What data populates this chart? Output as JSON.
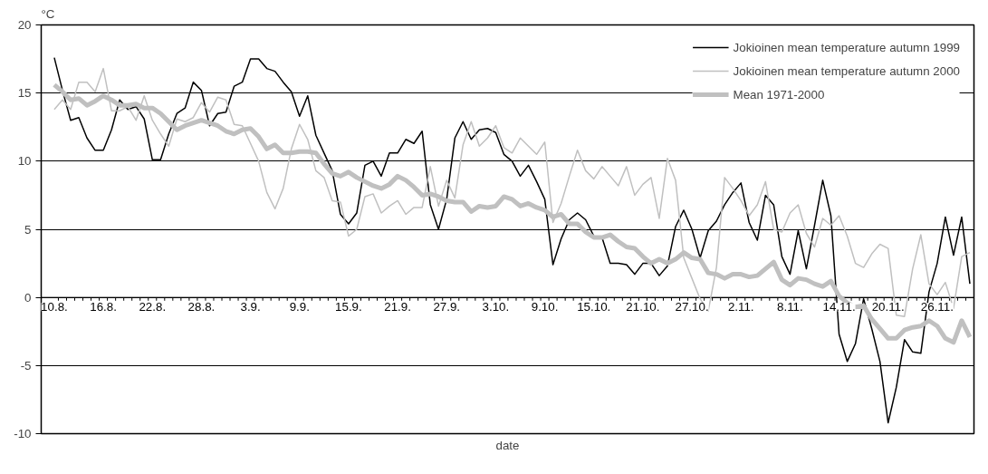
{
  "chart_data": {
    "type": "line",
    "xlabel": "date",
    "ylabel": "°C",
    "categories": [
      "10.8.",
      null,
      null,
      null,
      null,
      null,
      "16.8.",
      null,
      null,
      null,
      null,
      null,
      "22.8.",
      null,
      null,
      null,
      null,
      null,
      "28.8.",
      null,
      null,
      null,
      null,
      null,
      "3.9.",
      null,
      null,
      null,
      null,
      null,
      "9.9.",
      null,
      null,
      null,
      null,
      null,
      "15.9.",
      null,
      null,
      null,
      null,
      null,
      "21.9.",
      null,
      null,
      null,
      null,
      null,
      "27.9.",
      null,
      null,
      null,
      null,
      null,
      "3.10.",
      null,
      null,
      null,
      null,
      null,
      "9.10.",
      null,
      null,
      null,
      null,
      null,
      "15.10.",
      null,
      null,
      null,
      null,
      null,
      "21.10.",
      null,
      null,
      null,
      null,
      null,
      "27.10.",
      null,
      null,
      null,
      null,
      null,
      "2.11.",
      null,
      null,
      null,
      null,
      null,
      "8.11.",
      null,
      null,
      null,
      null,
      null,
      "14.11.",
      null,
      null,
      null,
      null,
      null,
      "20.11.",
      null,
      null,
      null,
      null,
      null,
      "26.11.",
      null,
      null,
      null,
      null
    ],
    "series": [
      {
        "name": "Jokioinen mean temperature autumn 1999",
        "color": "#000000",
        "values": [
          17.6,
          15.2,
          13.0,
          13.2,
          11.7,
          10.8,
          10.8,
          12.3,
          14.5,
          13.8,
          14.0,
          13.1,
          10.1,
          10.1,
          12.0,
          13.5,
          13.9,
          15.8,
          15.2,
          12.6,
          13.5,
          13.6,
          15.5,
          15.8,
          17.5,
          17.5,
          16.8,
          16.6,
          15.8,
          15.1,
          13.3,
          14.8,
          11.9,
          10.6,
          9.3,
          6.1,
          5.4,
          6.2,
          9.7,
          10.0,
          8.9,
          10.6,
          10.6,
          11.6,
          11.3,
          12.2,
          6.8,
          5.0,
          7.2,
          11.7,
          12.9,
          11.6,
          12.3,
          12.4,
          12.1,
          10.5,
          10.0,
          8.9,
          9.7,
          8.5,
          7.2,
          2.4,
          4.3,
          5.7,
          6.2,
          5.7,
          4.5,
          4.4,
          2.5,
          2.5,
          2.4,
          1.7,
          2.5,
          2.5,
          1.6,
          2.3,
          5.2,
          6.4,
          5.0,
          2.9,
          4.9,
          5.6,
          6.8,
          7.7,
          8.4,
          5.5,
          4.2,
          7.5,
          6.8,
          3.0,
          1.7,
          4.9,
          2.1,
          5.3,
          8.6,
          6.0,
          -2.7,
          -4.7,
          -3.4,
          -0.1,
          -2.3,
          -4.7,
          -9.2,
          -6.6,
          -3.1,
          -4.0,
          -4.1,
          0.4,
          2.5,
          5.9,
          3.1,
          5.9,
          1.0
        ]
      },
      {
        "name": "Jokioinen mean temperature autumn 2000",
        "color": "#c0c0c0",
        "values": [
          13.8,
          14.5,
          13.8,
          15.8,
          15.8,
          15.1,
          16.8,
          13.7,
          13.7,
          14.0,
          13.0,
          14.8,
          13.0,
          12.0,
          11.1,
          13.1,
          12.9,
          13.2,
          14.3,
          13.6,
          14.7,
          14.5,
          12.7,
          12.6,
          11.3,
          10.0,
          7.7,
          6.5,
          8.0,
          10.9,
          12.7,
          11.6,
          9.3,
          8.8,
          7.1,
          7.0,
          4.5,
          5.0,
          7.4,
          7.6,
          6.2,
          6.7,
          7.1,
          6.1,
          6.6,
          6.6,
          9.6,
          6.7,
          8.6,
          7.3,
          11.2,
          12.9,
          11.1,
          11.7,
          12.6,
          11.0,
          10.6,
          11.7,
          11.1,
          10.5,
          11.4,
          5.5,
          6.9,
          8.9,
          10.8,
          9.3,
          8.7,
          9.6,
          8.9,
          8.2,
          9.6,
          7.5,
          8.3,
          8.8,
          5.8,
          10.2,
          8.6,
          2.9,
          1.4,
          -0.1,
          -1.0,
          2.2,
          8.8,
          8.0,
          7.1,
          6.0,
          6.8,
          8.5,
          5.0,
          4.8,
          6.2,
          6.8,
          4.7,
          3.7,
          5.8,
          5.3,
          6.0,
          4.5,
          2.5,
          2.2,
          3.2,
          3.9,
          3.6,
          -1.3,
          -1.4,
          2.1,
          4.6,
          1.0,
          0.2,
          1.1,
          -0.8,
          3.0,
          3.3
        ]
      },
      {
        "name": "Mean 1971-2000",
        "color": "#c0c0c0",
        "values": [
          15.6,
          15.1,
          14.5,
          14.6,
          14.1,
          14.4,
          14.8,
          14.5,
          14.1,
          14.1,
          14.2,
          13.9,
          13.9,
          13.5,
          12.9,
          12.3,
          12.6,
          12.8,
          13.0,
          12.8,
          12.6,
          12.2,
          12.0,
          12.3,
          12.4,
          11.8,
          10.9,
          11.2,
          10.6,
          10.6,
          10.7,
          10.7,
          10.6,
          9.8,
          9.1,
          8.9,
          9.2,
          8.8,
          8.5,
          8.2,
          8.0,
          8.3,
          8.9,
          8.6,
          8.1,
          7.5,
          7.6,
          7.4,
          7.1,
          7.0,
          7.0,
          6.3,
          6.7,
          6.6,
          6.7,
          7.4,
          7.2,
          6.7,
          6.9,
          6.6,
          6.4,
          5.9,
          6.1,
          5.4,
          5.4,
          4.8,
          4.4,
          4.4,
          4.6,
          4.1,
          3.7,
          3.6,
          3.0,
          2.5,
          2.8,
          2.5,
          2.8,
          3.3,
          2.9,
          2.8,
          1.8,
          1.7,
          1.4,
          1.7,
          1.7,
          1.5,
          1.6,
          2.1,
          2.6,
          1.3,
          0.9,
          1.4,
          1.3,
          1.0,
          0.8,
          1.2,
          0.1,
          -0.4,
          -0.7,
          -0.6,
          -1.6,
          -2.3,
          -3.0,
          -3.0,
          -2.4,
          -2.2,
          -2.1,
          -1.7,
          -2.1,
          -3.0,
          -3.3,
          -1.7,
          -2.9
        ]
      }
    ],
    "ylim": [
      -10,
      20
    ],
    "yticks": [
      -10,
      -5,
      0,
      5,
      10,
      15,
      20
    ],
    "grid": "y",
    "legend": "top right",
    "marker": "none",
    "line_style": "solid"
  }
}
